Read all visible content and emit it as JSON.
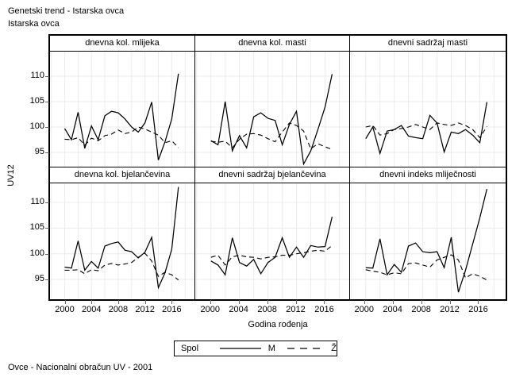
{
  "page_title": [
    "Genetski trend - Istarska ovca",
    "Istarska ovca"
  ],
  "footer_note": "Ovce - Nacionalni obračun UV - 2001",
  "colors": {
    "background": "#ffffff",
    "line": "#000000",
    "grid": "#ececec",
    "border": "#000000",
    "tick": "#666666"
  },
  "chart_data": {
    "type": "line",
    "layout": "2x3-panel-lattice",
    "xlabel": "Godina rođenja",
    "ylabel": "UV12",
    "x": [
      2000,
      2001,
      2002,
      2003,
      2004,
      2005,
      2006,
      2007,
      2008,
      2009,
      2010,
      2011,
      2012,
      2013,
      2014,
      2015,
      2016,
      2017
    ],
    "xticks": [
      2000,
      2004,
      2008,
      2012,
      2016
    ],
    "yticks": [
      110,
      105,
      100,
      95
    ],
    "xlim": [
      1997.8,
      2019.4
    ],
    "ylim_row1": [
      92.2,
      114.8
    ],
    "ylim_row2": [
      91.0,
      113.6
    ],
    "grid": true,
    "legend": {
      "title": "Spol",
      "position": "bottom",
      "entries": [
        {
          "label": "M",
          "style": "solid"
        },
        {
          "label": "Ž",
          "style": "dashed"
        }
      ]
    },
    "panels": [
      {
        "title": "dnevna kol. mlijeka",
        "series": [
          {
            "name": "M",
            "style": "solid",
            "values": [
              99.7,
              97.5,
              102.9,
              95.8,
              100.2,
              97.5,
              102.2,
              103.1,
              102.8,
              101.6,
              100.0,
              99.0,
              100.8,
              104.9,
              93.5,
              97.1,
              101.6,
              110.5
            ]
          },
          {
            "name": "Ž",
            "style": "dashed",
            "values": [
              97.6,
              97.5,
              97.9,
              96.4,
              97.8,
              97.3,
              98.3,
              98.6,
              99.4,
              98.7,
              99.0,
              100.0,
              99.6,
              99.0,
              98.4,
              96.9,
              97.3,
              95.9
            ]
          }
        ]
      },
      {
        "title": "dnevna kol. masti",
        "series": [
          {
            "name": "M",
            "style": "solid",
            "values": [
              97.3,
              96.5,
              105.0,
              95.3,
              98.3,
              95.9,
              102.0,
              102.8,
              101.7,
              101.3,
              96.5,
              100.5,
              103.1,
              92.7,
              95.3,
              99.5,
              103.9,
              110.4
            ]
          },
          {
            "name": "Ž",
            "style": "dashed",
            "values": [
              97.2,
              97.0,
              97.2,
              95.9,
              97.6,
              98.6,
              98.7,
              98.4,
              97.7,
              97.1,
              99.0,
              100.8,
              100.3,
              99.2,
              95.7,
              96.7,
              96.1,
              95.6
            ]
          }
        ]
      },
      {
        "title": "dnevni sadržaj masti",
        "series": [
          {
            "name": "M",
            "style": "solid",
            "values": [
              97.7,
              100.0,
              94.8,
              99.2,
              99.5,
              100.3,
              98.2,
              97.9,
              97.7,
              102.3,
              100.8,
              95.1,
              99.0,
              98.7,
              99.5,
              98.4,
              96.9,
              104.9
            ]
          },
          {
            "name": "Ž",
            "style": "dashed",
            "values": [
              100.0,
              100.3,
              98.4,
              98.7,
              99.5,
              99.7,
              100.0,
              100.5,
              100.0,
              99.5,
              100.8,
              100.5,
              100.3,
              100.8,
              100.3,
              99.5,
              97.9,
              100.1
            ]
          }
        ]
      },
      {
        "title": "dnevna kol. bjelančevina",
        "series": [
          {
            "name": "M",
            "style": "solid",
            "values": [
              97.4,
              97.2,
              102.5,
              96.8,
              98.5,
              97.2,
              101.5,
              102.0,
              102.3,
              100.7,
              100.4,
              99.2,
              100.3,
              103.2,
              93.4,
              96.3,
              100.9,
              113.0
            ]
          },
          {
            "name": "Ž",
            "style": "dashed",
            "values": [
              96.8,
              96.8,
              96.9,
              96.1,
              96.9,
              96.7,
              97.8,
              98.1,
              97.8,
              98.0,
              98.3,
              99.3,
              100.1,
              98.6,
              95.6,
              96.4,
              95.9,
              94.9
            ]
          }
        ]
      },
      {
        "title": "dnevni sadržaj bjelančevina",
        "series": [
          {
            "name": "M",
            "style": "solid",
            "values": [
              98.6,
              97.8,
              95.9,
              103.1,
              98.3,
              97.6,
              98.9,
              96.1,
              98.3,
              99.3,
              103.1,
              99.3,
              101.3,
              99.3,
              101.6,
              101.3,
              101.4,
              107.2
            ]
          },
          {
            "name": "Ž",
            "style": "dashed",
            "values": [
              99.3,
              99.7,
              97.8,
              99.4,
              99.7,
              99.4,
              99.3,
              99.0,
              99.3,
              99.4,
              99.7,
              99.7,
              100.0,
              100.2,
              100.5,
              100.7,
              100.5,
              101.6
            ]
          }
        ]
      },
      {
        "title": "dnevni indeks mliječnosti",
        "series": [
          {
            "name": "M",
            "style": "solid",
            "values": [
              97.3,
              97.2,
              102.9,
              95.9,
              97.9,
              96.4,
              101.5,
              102.1,
              100.4,
              100.2,
              100.4,
              97.3,
              103.2,
              92.5,
              96.8,
              101.9,
              107.0,
              112.6
            ]
          },
          {
            "name": "Ž",
            "style": "dashed",
            "values": [
              96.9,
              96.6,
              96.4,
              95.9,
              96.3,
              96.1,
              98.1,
              98.2,
              97.8,
              97.4,
              98.8,
              99.3,
              99.8,
              98.8,
              95.3,
              96.1,
              95.6,
              94.9
            ]
          }
        ]
      }
    ]
  }
}
